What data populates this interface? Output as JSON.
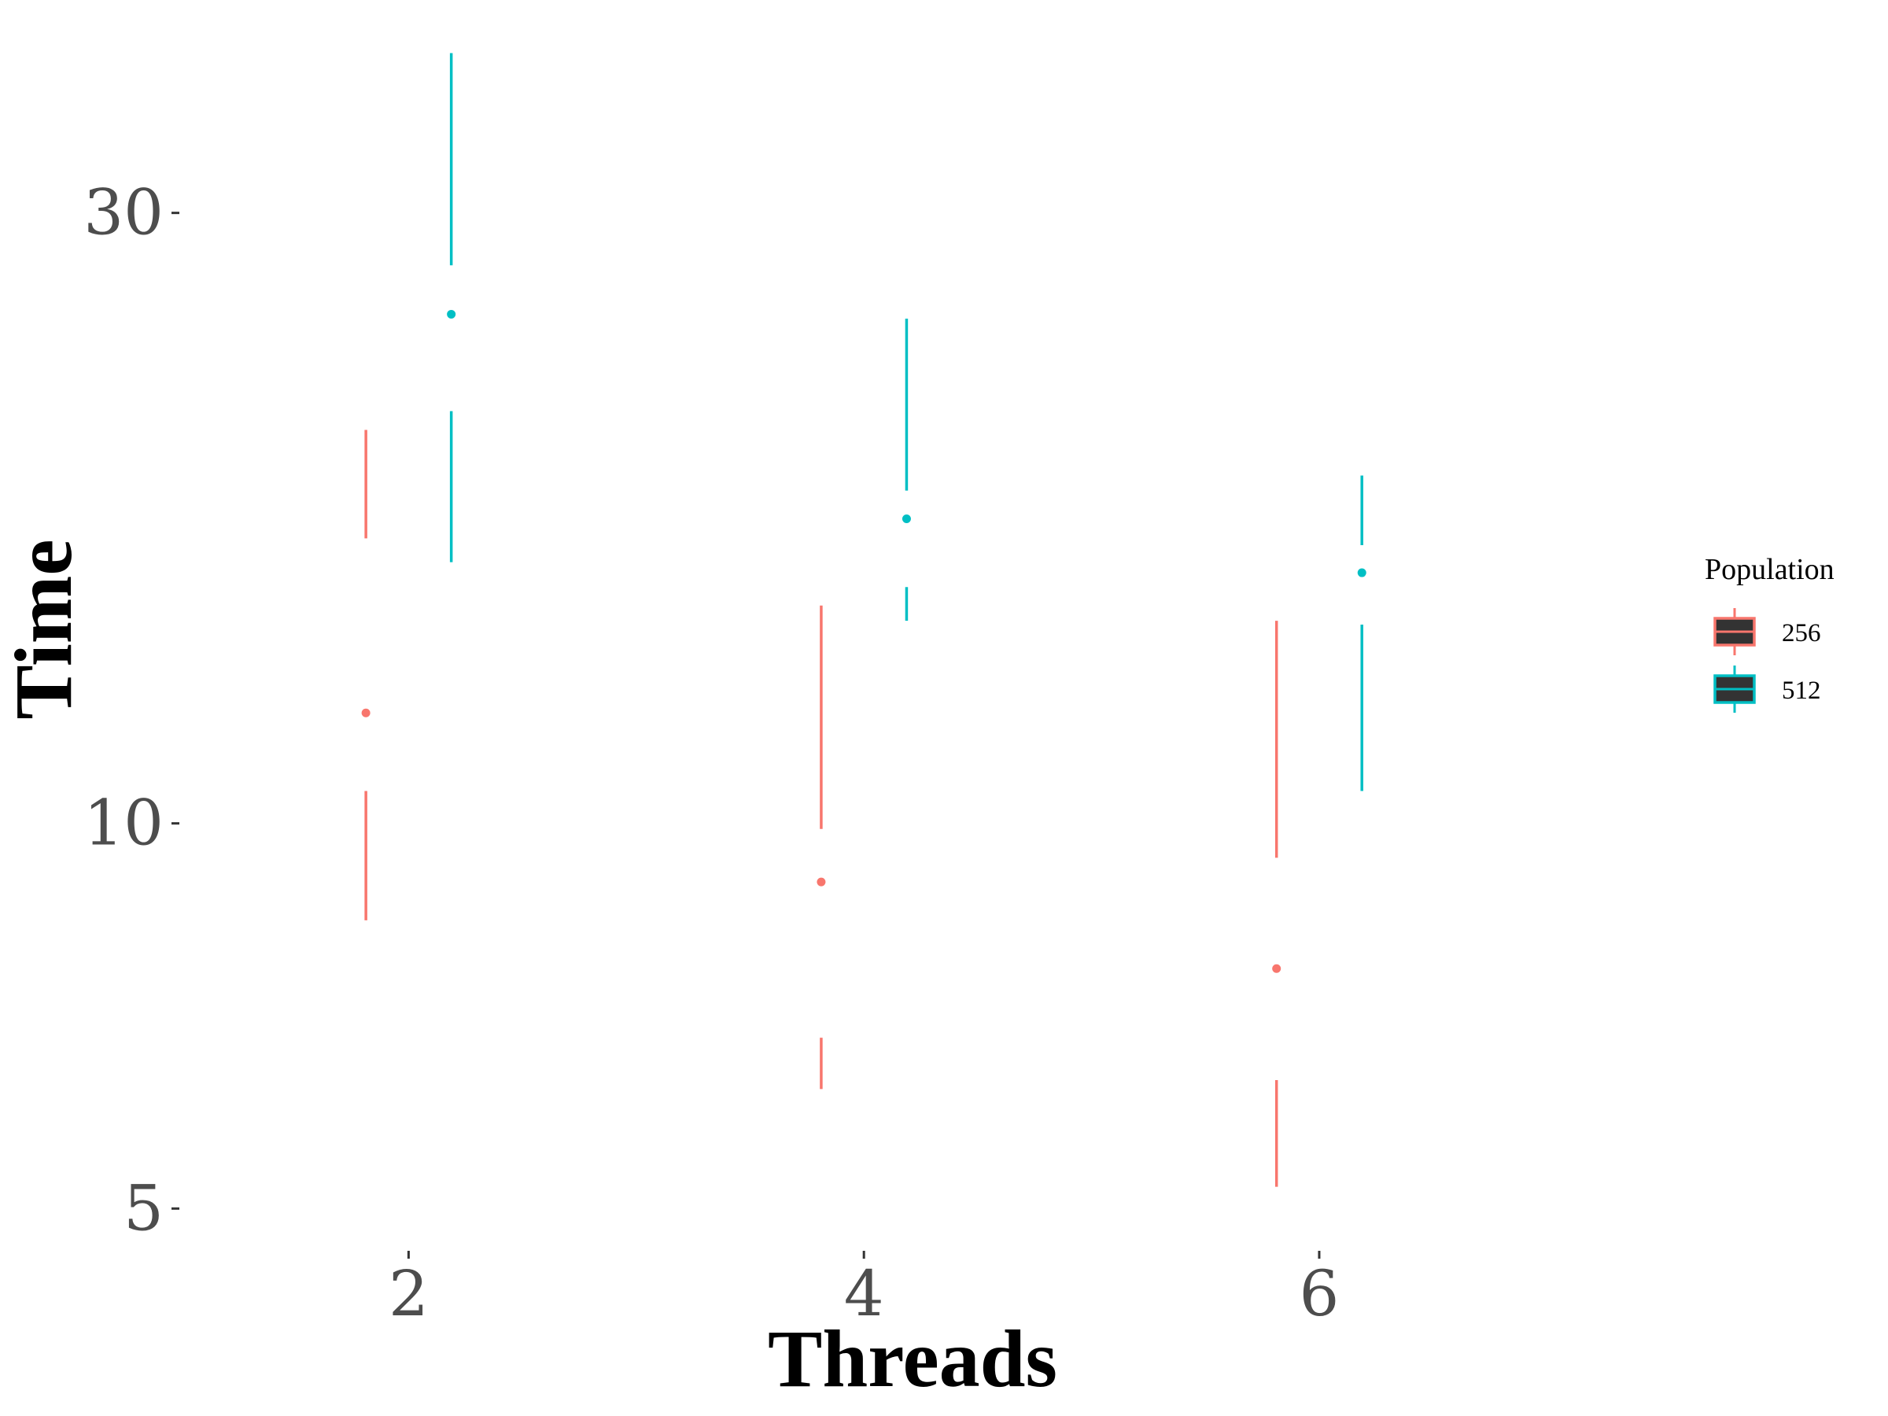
{
  "chart_data": {
    "type": "boxplot",
    "title": "",
    "xlabel": "Threads",
    "ylabel": "Time",
    "y_scale": "log",
    "ylim": [
      4.7,
      41
    ],
    "xlim": [
      1,
      7.6
    ],
    "x_ticks": [
      2,
      4,
      6
    ],
    "y_ticks": [
      5,
      10,
      30
    ],
    "grid": false,
    "legend": {
      "title": "Population",
      "position": "right"
    },
    "series": [
      {
        "name": "256",
        "color": "#F8766D",
        "boxes": [
          {
            "x": 2,
            "whisker_low": 8.4,
            "box_low": 10.6,
            "median": 12.2,
            "box_high": 16.7,
            "whisker_high": 20.3
          },
          {
            "x": 4,
            "whisker_low": 6.2,
            "box_low": 6.8,
            "median": 9.0,
            "box_high": 9.9,
            "whisker_high": 14.8
          },
          {
            "x": 6,
            "whisker_low": 5.2,
            "box_low": 6.3,
            "median": 7.7,
            "box_high": 9.4,
            "whisker_high": 14.4
          }
        ]
      },
      {
        "name": "512",
        "color": "#00BFC4",
        "boxes": [
          {
            "x": 2,
            "whisker_low": 16.0,
            "box_low": 21.0,
            "median": 25.0,
            "box_high": 27.3,
            "whisker_high": 40.0
          },
          {
            "x": 4,
            "whisker_low": 14.4,
            "box_low": 15.3,
            "median": 17.3,
            "box_high": 18.2,
            "whisker_high": 24.8
          },
          {
            "x": 6,
            "whisker_low": 10.6,
            "box_low": 14.3,
            "median": 15.7,
            "box_high": 16.5,
            "whisker_high": 18.7
          }
        ]
      }
    ]
  }
}
